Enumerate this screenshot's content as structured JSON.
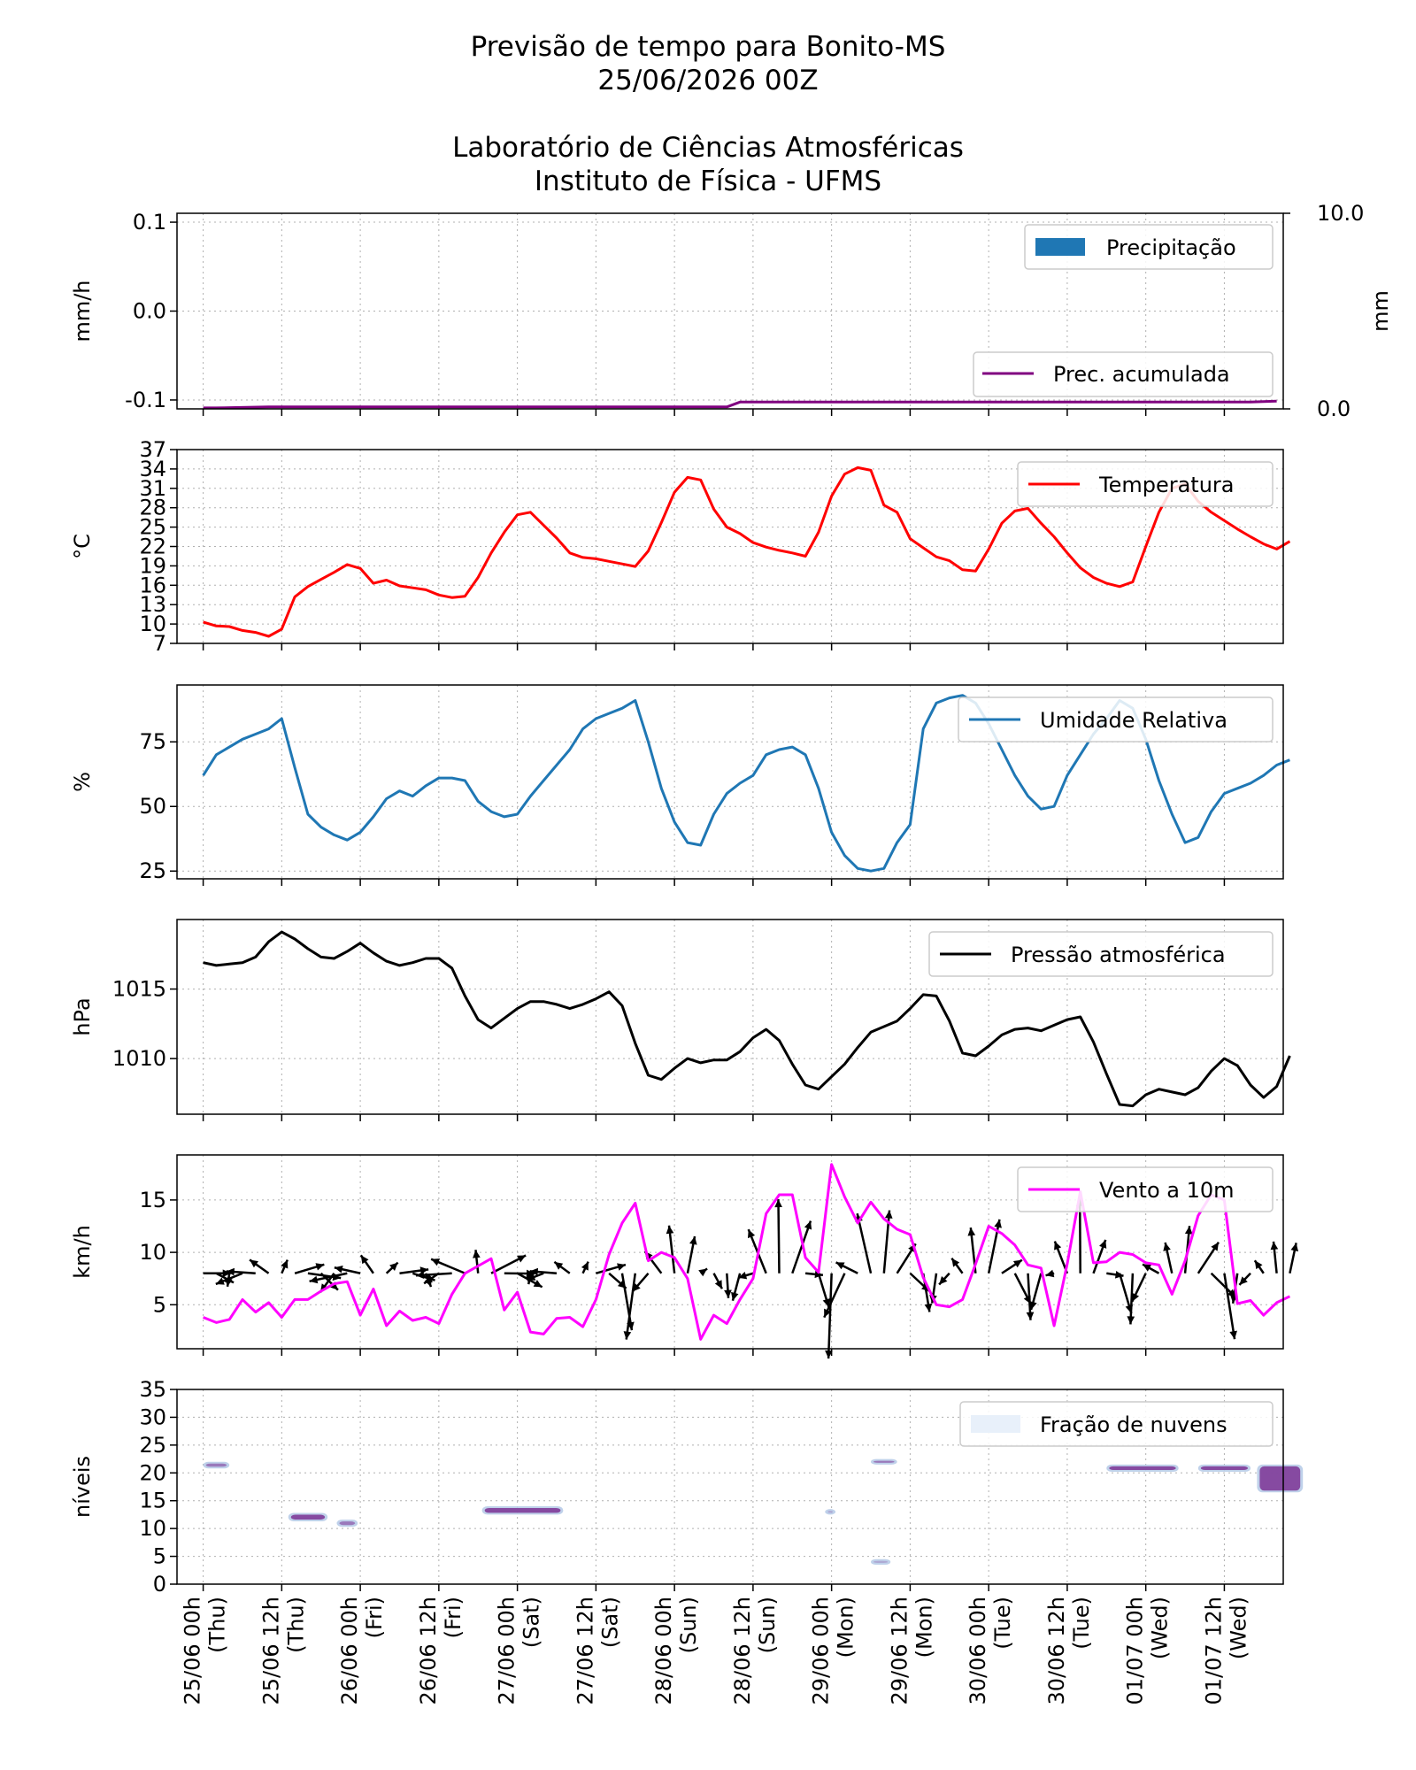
{
  "header": {
    "title_line1": "Previsão de tempo para Bonito-MS",
    "title_line2": "25/06/2026 00Z",
    "org_line1": "Laboratório de Ciências Atmosféricas",
    "org_line2": "Instituto de Física - UFMS"
  },
  "chart_data": [
    {
      "type": "bar",
      "panel": "precipitation",
      "ylabel": "mm/h",
      "ylabel_right": "mm",
      "ylim": [
        -0.11,
        0.11
      ],
      "yticks": [
        0.1,
        0.0,
        -0.1
      ],
      "ytick_labels": [
        "0.1",
        "0.0",
        "-0.1"
      ],
      "ylim_right": [
        0.0,
        10.0
      ],
      "yticks_right_labels": [
        "10.0",
        "0.0"
      ],
      "legend": [
        "Precipitação",
        "Prec. acumulada"
      ],
      "colors": {
        "precip": "#1f77b4",
        "accum": "#800080"
      },
      "series": [
        {
          "name": "Precipitação",
          "values": []
        },
        {
          "name": "Prec. acumulada",
          "x": [
            0,
            1,
            5,
            40,
            41,
            80,
            82
          ],
          "values": [
            0.05,
            0.05,
            0.1,
            0.1,
            0.35,
            0.35,
            0.4
          ]
        }
      ]
    },
    {
      "type": "line",
      "panel": "temperature",
      "ylabel": "°C",
      "ylim": [
        7,
        37
      ],
      "yticks": [
        7,
        10,
        13,
        16,
        19,
        22,
        25,
        28,
        31,
        34,
        37
      ],
      "legend": [
        "Temperatura"
      ],
      "color": "#ff0000",
      "x": [
        0,
        1,
        2,
        3,
        4,
        5,
        6,
        7,
        8,
        9,
        10,
        11,
        12,
        13,
        14,
        15,
        16,
        17,
        18,
        19,
        20,
        21,
        22,
        23,
        24,
        25,
        26,
        27,
        28,
        29,
        30,
        31,
        32,
        33,
        34,
        35,
        36,
        37,
        38,
        39,
        40,
        41,
        42,
        43,
        44,
        45,
        46,
        47,
        48,
        49,
        50,
        51,
        52,
        53,
        54,
        55,
        56,
        57,
        58,
        59,
        60,
        61,
        62,
        63,
        64,
        65,
        66,
        67,
        68,
        69,
        70,
        71,
        72,
        73,
        74,
        75,
        76,
        77,
        78,
        79,
        80,
        81,
        82,
        83
      ],
      "series": [
        {
          "name": "Temperatura",
          "values": [
            10.3,
            9.7,
            9.6,
            9.0,
            8.7,
            8.1,
            9.2,
            14.2,
            15.8,
            16.9,
            18.0,
            19.2,
            18.6,
            16.3,
            16.8,
            15.9,
            15.6,
            15.3,
            14.5,
            14.1,
            14.3,
            17.2,
            21.0,
            24.2,
            26.9,
            27.3,
            25.3,
            23.3,
            21.0,
            20.3,
            20.1,
            19.7,
            19.3,
            18.9,
            21.3,
            25.7,
            30.4,
            32.7,
            32.3,
            27.8,
            25.0,
            24.0,
            22.6,
            21.9,
            21.4,
            21.0,
            20.5,
            24.2,
            29.8,
            33.2,
            34.2,
            33.8,
            28.4,
            27.3,
            23.2,
            21.8,
            20.4,
            19.8,
            18.4,
            18.2,
            21.6,
            25.6,
            27.5,
            27.9,
            25.6,
            23.5,
            21.0,
            18.7,
            17.2,
            16.3,
            15.8,
            16.5,
            22.0,
            27.3,
            31.0,
            31.7,
            29.0,
            27.3,
            26.0,
            24.7,
            23.5,
            22.4,
            21.6,
            22.8
          ]
        }
      ]
    },
    {
      "type": "line",
      "panel": "humidity",
      "ylabel": "%",
      "ylim": [
        22,
        97
      ],
      "yticks": [
        25,
        50,
        75
      ],
      "legend": [
        "Umidade Relativa"
      ],
      "color": "#1f77b4",
      "x": [
        0,
        1,
        2,
        3,
        4,
        5,
        6,
        7,
        8,
        9,
        10,
        11,
        12,
        13,
        14,
        15,
        16,
        17,
        18,
        19,
        20,
        21,
        22,
        23,
        24,
        25,
        26,
        27,
        28,
        29,
        30,
        31,
        32,
        33,
        34,
        35,
        36,
        37,
        38,
        39,
        40,
        41,
        42,
        43,
        44,
        45,
        46,
        47,
        48,
        49,
        50,
        51,
        52,
        53,
        54,
        55,
        56,
        57,
        58,
        59,
        60,
        61,
        62,
        63,
        64,
        65,
        66,
        67,
        68,
        69,
        70,
        71,
        72,
        73,
        74,
        75,
        76,
        77,
        78,
        79,
        80,
        81,
        82,
        83
      ],
      "series": [
        {
          "name": "Umidade Relativa",
          "values": [
            62,
            70,
            73,
            76,
            78,
            80,
            84,
            65,
            47,
            42,
            39,
            37,
            40,
            46,
            53,
            56,
            54,
            58,
            61,
            61,
            60,
            52,
            48,
            46,
            47,
            54,
            60,
            66,
            72,
            80,
            84,
            86,
            88,
            91,
            75,
            57,
            44,
            36,
            35,
            47,
            55,
            59,
            62,
            70,
            72,
            73,
            70,
            57,
            40,
            31,
            26,
            25,
            26,
            36,
            43,
            80,
            90,
            92,
            93,
            90,
            82,
            72,
            62,
            54,
            49,
            50,
            62,
            70,
            78,
            84,
            91,
            88,
            76,
            60,
            47,
            36,
            38,
            48,
            55,
            57,
            59,
            62,
            66,
            68
          ]
        }
      ]
    },
    {
      "type": "line",
      "panel": "pressure",
      "ylabel": "hPa",
      "ylim": [
        1006,
        1020
      ],
      "yticks": [
        1010,
        1015
      ],
      "legend": [
        "Pressão atmosférica"
      ],
      "color": "#000000",
      "x": [
        0,
        1,
        2,
        3,
        4,
        5,
        6,
        7,
        8,
        9,
        10,
        11,
        12,
        13,
        14,
        15,
        16,
        17,
        18,
        19,
        20,
        21,
        22,
        23,
        24,
        25,
        26,
        27,
        28,
        29,
        30,
        31,
        32,
        33,
        34,
        35,
        36,
        37,
        38,
        39,
        40,
        41,
        42,
        43,
        44,
        45,
        46,
        47,
        48,
        49,
        50,
        51,
        52,
        53,
        54,
        55,
        56,
        57,
        58,
        59,
        60,
        61,
        62,
        63,
        64,
        65,
        66,
        67,
        68,
        69,
        70,
        71,
        72,
        73,
        74,
        75,
        76,
        77,
        78,
        79,
        80,
        81,
        82,
        83
      ],
      "series": [
        {
          "name": "Pressão atmosférica",
          "values": [
            1016.9,
            1016.7,
            1016.8,
            1016.9,
            1017.3,
            1018.4,
            1019.1,
            1018.6,
            1017.9,
            1017.3,
            1017.2,
            1017.7,
            1018.3,
            1017.6,
            1017.0,
            1016.7,
            1016.9,
            1017.2,
            1017.2,
            1016.5,
            1014.5,
            1012.8,
            1012.2,
            1012.9,
            1013.6,
            1014.1,
            1014.1,
            1013.9,
            1013.6,
            1013.9,
            1014.3,
            1014.8,
            1013.8,
            1011.1,
            1008.8,
            1008.5,
            1009.3,
            1010.0,
            1009.7,
            1009.9,
            1009.9,
            1010.5,
            1011.5,
            1012.1,
            1011.3,
            1009.6,
            1008.1,
            1007.8,
            1008.7,
            1009.6,
            1010.8,
            1011.9,
            1012.3,
            1012.7,
            1013.6,
            1014.6,
            1014.5,
            1012.7,
            1010.4,
            1010.2,
            1010.9,
            1011.7,
            1012.1,
            1012.2,
            1012.0,
            1012.4,
            1012.8,
            1013.0,
            1011.2,
            1008.9,
            1006.7,
            1006.6,
            1007.4,
            1007.8,
            1007.6,
            1007.4,
            1007.9,
            1009.1,
            1010.0,
            1009.5,
            1008.1,
            1007.2,
            1008.0,
            1010.2
          ]
        }
      ]
    },
    {
      "type": "line",
      "panel": "wind",
      "ylabel": "km/h",
      "ylim": [
        0.8,
        19.3
      ],
      "yticks": [
        5,
        10,
        15
      ],
      "legend": [
        "Vento a 10m"
      ],
      "color": "#ff00ff",
      "x": [
        0,
        1,
        2,
        3,
        4,
        5,
        6,
        7,
        8,
        9,
        10,
        11,
        12,
        13,
        14,
        15,
        16,
        17,
        18,
        19,
        20,
        21,
        22,
        23,
        24,
        25,
        26,
        27,
        28,
        29,
        30,
        31,
        32,
        33,
        34,
        35,
        36,
        37,
        38,
        39,
        40,
        41,
        42,
        43,
        44,
        45,
        46,
        47,
        48,
        49,
        50,
        51,
        52,
        53,
        54,
        55,
        56,
        57,
        58,
        59,
        60,
        61,
        62,
        63,
        64,
        65,
        66,
        67,
        68,
        69,
        70,
        71,
        72,
        73,
        74,
        75,
        76,
        77,
        78,
        79,
        80,
        81,
        82,
        83
      ],
      "series": [
        {
          "name": "Vento a 10m",
          "values": [
            3.8,
            3.3,
            3.6,
            5.5,
            4.3,
            5.2,
            3.8,
            5.5,
            5.5,
            6.3,
            7.0,
            7.2,
            4.0,
            6.5,
            3.0,
            4.4,
            3.5,
            3.8,
            3.2,
            6.0,
            8.0,
            8.7,
            9.4,
            4.5,
            6.2,
            2.4,
            2.2,
            3.7,
            3.8,
            2.9,
            5.5,
            9.8,
            12.8,
            14.7,
            9.2,
            10.0,
            9.5,
            7.5,
            1.7,
            4.0,
            3.2,
            5.5,
            7.5,
            13.7,
            15.5,
            15.5,
            9.5,
            8.1,
            18.4,
            15.3,
            12.8,
            14.8,
            13.2,
            12.2,
            11.7,
            7.6,
            5.0,
            4.8,
            5.5,
            8.9,
            12.5,
            11.8,
            10.7,
            8.8,
            8.5,
            3.0,
            8.9,
            15.8,
            9.0,
            9.1,
            10.0,
            9.8,
            9.0,
            8.8,
            6.0,
            9.2,
            13.5,
            15.5,
            15.0,
            5.1,
            5.4,
            4.0,
            5.2,
            5.8
          ]
        }
      ],
      "arrows_note": "wind direction arrows plotted along y≈8 with varying orientation"
    },
    {
      "type": "heatmap",
      "panel": "clouds",
      "ylabel": "níveis",
      "ylim": [
        0,
        35
      ],
      "yticks": [
        0,
        5,
        10,
        15,
        20,
        25,
        30,
        35
      ],
      "legend": [
        "Fração de nuvens"
      ],
      "color": "#7b3294",
      "patches": [
        {
          "x": [
            0,
            2
          ],
          "y": [
            20.8,
            22
          ],
          "level": "medium"
        },
        {
          "x": [
            6.5,
            9.5
          ],
          "y": [
            11.3,
            12.8
          ],
          "level": "high"
        },
        {
          "x": [
            10.2,
            11.8
          ],
          "y": [
            10.3,
            11.6
          ],
          "level": "medium"
        },
        {
          "x": [
            21.3,
            27.5
          ],
          "y": [
            12.5,
            14.0
          ],
          "level": "high"
        },
        {
          "x": [
            47.5,
            48.3
          ],
          "y": [
            12.5,
            13.5
          ],
          "level": "low"
        },
        {
          "x": [
            51.0,
            53.0
          ],
          "y": [
            21.5,
            22.5
          ],
          "level": "medium"
        },
        {
          "x": [
            51.0,
            52.5
          ],
          "y": [
            3.5,
            4.5
          ],
          "level": "low"
        },
        {
          "x": [
            69.0,
            74.5
          ],
          "y": [
            20.2,
            21.5
          ],
          "level": "high"
        },
        {
          "x": [
            76.0,
            80.0
          ],
          "y": [
            20.2,
            21.5
          ],
          "level": "high"
        },
        {
          "x": [
            80.5,
            84.0
          ],
          "y": [
            16.5,
            21.5
          ],
          "level": "high"
        }
      ]
    }
  ],
  "x_axis": {
    "labels": [
      {
        "date": "25/06 00h",
        "day": "(Thu)"
      },
      {
        "date": "25/06 12h",
        "day": "(Thu)"
      },
      {
        "date": "26/06 00h",
        "day": "(Fri)"
      },
      {
        "date": "26/06 12h",
        "day": "(Fri)"
      },
      {
        "date": "27/06 00h",
        "day": "(Sat)"
      },
      {
        "date": "27/06 12h",
        "day": "(Sat)"
      },
      {
        "date": "28/06 00h",
        "day": "(Sun)"
      },
      {
        "date": "28/06 12h",
        "day": "(Sun)"
      },
      {
        "date": "29/06 00h",
        "day": "(Mon)"
      },
      {
        "date": "29/06 12h",
        "day": "(Mon)"
      },
      {
        "date": "30/06 00h",
        "day": "(Tue)"
      },
      {
        "date": "30/06 12h",
        "day": "(Tue)"
      },
      {
        "date": "01/07 00h",
        "day": "(Wed)"
      },
      {
        "date": "01/07 12h",
        "day": "(Wed)"
      }
    ],
    "range": [
      -2,
      82.5
    ],
    "tick_positions": [
      0,
      6,
      12,
      18,
      24,
      30,
      36,
      42,
      48,
      54,
      60,
      66,
      72,
      78
    ]
  }
}
